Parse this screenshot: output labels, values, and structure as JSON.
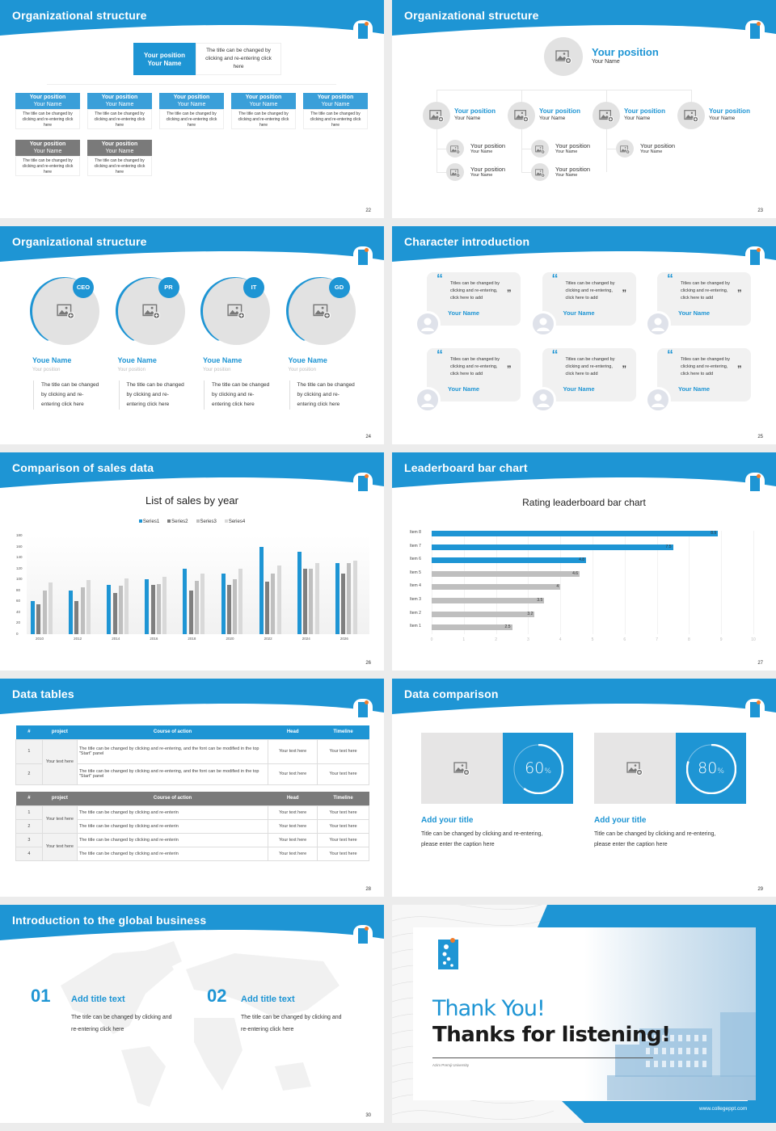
{
  "colors": {
    "brand": "#1e95d4",
    "gray_header": "#7a7a7a",
    "bar_gray": "#bfbfbf",
    "card_gray": "#e6e5e5"
  },
  "slides": [
    {
      "page": "22",
      "title": "Organizational structure",
      "top": {
        "position": "Your position",
        "name": "Your Name",
        "desc": "The title can be changed by clicking and re-entering click here"
      },
      "members": [
        {
          "position": "Your position",
          "name": "Your Name",
          "desc": "The title can be changed by clicking and re-entering click here"
        },
        {
          "position": "Your position",
          "name": "Your Name",
          "desc": "The title can be changed by clicking and re-entering click here"
        },
        {
          "position": "Your position",
          "name": "Your Name",
          "desc": "The title can be changed by clicking and re-entering click here"
        },
        {
          "position": "Your position",
          "name": "Your Name",
          "desc": "The title can be changed by clicking and re-entering click here"
        },
        {
          "position": "Your position",
          "name": "Your Name",
          "desc": "The title can be changed by clicking and re-entering click here"
        }
      ],
      "gray_members": [
        {
          "position": "Your position",
          "name": "Your Name",
          "desc": "The title can be changed by clicking and re-entering click here"
        },
        {
          "position": "Your position",
          "name": "Your Name",
          "desc": "The title can be changed by clicking and re-entering click here"
        }
      ]
    },
    {
      "page": "23",
      "title": "Organizational structure",
      "top": {
        "position": "Your position",
        "name": "Your Name"
      },
      "managers": [
        {
          "position": "Your position",
          "name": "Your Name",
          "reports": [
            {
              "position": "Your position",
              "name": "Your Name"
            },
            {
              "position": "Your position",
              "name": "Your Name"
            }
          ]
        },
        {
          "position": "Your position",
          "name": "Your Name",
          "reports": [
            {
              "position": "Your position",
              "name": "Your Name"
            },
            {
              "position": "Your position",
              "name": "Your Name"
            }
          ]
        },
        {
          "position": "Your position",
          "name": "Your Name",
          "reports": [
            {
              "position": "Your position",
              "name": "Your Name"
            }
          ]
        },
        {
          "position": "Your position",
          "name": "Your Name",
          "reports": []
        }
      ]
    },
    {
      "page": "24",
      "title": "Organizational structure",
      "people": [
        {
          "badge": "CEO",
          "name": "Youe Name",
          "position": "Your position",
          "desc": "The title can be changed by clicking and re-entering click here"
        },
        {
          "badge": "PR",
          "name": "Youe Name",
          "position": "Your position",
          "desc": "The title can be changed by clicking and re-entering click here"
        },
        {
          "badge": "IT",
          "name": "Youe Name",
          "position": "Your position",
          "desc": "The title can be changed by clicking and re-entering click here"
        },
        {
          "badge": "GD",
          "name": "Youe Name",
          "position": "Your position",
          "desc": "The title can be changed by clicking and re-entering click here"
        }
      ]
    },
    {
      "page": "25",
      "title": "Character introduction",
      "quotes": [
        {
          "text": "Titles can be changed by clicking and re-entering, click here to add",
          "name": "Your Name"
        },
        {
          "text": "Titles can be changed by clicking and re-entering, click here to add",
          "name": "Your Name"
        },
        {
          "text": "Titles can be changed by clicking and re-entering, click here to add",
          "name": "Your Name"
        },
        {
          "text": "Titles can be changed by clicking and re-entering, click here to add",
          "name": "Your Name"
        },
        {
          "text": "Titles can be changed by clicking and re-entering, click here to add",
          "name": "Your Name"
        },
        {
          "text": "Titles can be changed by clicking and re-entering, click here to add",
          "name": "Your Name"
        }
      ]
    },
    {
      "page": "26",
      "title": "Comparison of sales data"
    },
    {
      "page": "27",
      "title": "Leaderboard bar chart"
    },
    {
      "page": "28",
      "title": "Data tables",
      "table1": {
        "headers": [
          "#",
          "project",
          "Course of action",
          "Head",
          "Timeline"
        ],
        "project": "Your text here",
        "rows": [
          {
            "num": "1",
            "action": "The title can be changed by clicking and re-entering, and the font can be modified in the top \"Start\" panel",
            "head": "Your text here",
            "timeline": "Your text here"
          },
          {
            "num": "2",
            "action": "The title can be changed by clicking and re-entering, and the font can be modified in the top \"Start\" panel",
            "head": "Your text here",
            "timeline": "Your text here"
          }
        ]
      },
      "table2": {
        "headers": [
          "#",
          "project",
          "Course of action",
          "Head",
          "Timeline"
        ],
        "projects": [
          "Your text here",
          "Your text here"
        ],
        "rows": [
          {
            "num": "1",
            "action": "The title can be changed by clicking and re-enterin",
            "head": "Your text here",
            "timeline": "Your text here"
          },
          {
            "num": "2",
            "action": "The title can be changed by clicking and re-enterin",
            "head": "Your text here",
            "timeline": "Your text here"
          },
          {
            "num": "3",
            "action": "The title can be changed by clicking and re-enterin",
            "head": "Your text here",
            "timeline": "Your text here"
          },
          {
            "num": "4",
            "action": "The title can be changed by clicking and re-enterin",
            "head": "Your text here",
            "timeline": "Your text here"
          }
        ]
      }
    },
    {
      "page": "29",
      "title": "Data comparison",
      "items": [
        {
          "percent": 60,
          "value": "60",
          "unit": "%",
          "heading": "Add your title",
          "text": "Title can be changed by clicking and re-entering, please enter the caption here"
        },
        {
          "percent": 80,
          "value": "80",
          "unit": "%",
          "heading": "Add your title",
          "text": "Title can be changed by clicking and re-entering, please enter the caption here"
        }
      ]
    },
    {
      "page": "30",
      "title": "Introduction to the global business",
      "items": [
        {
          "num": "01",
          "heading": "Add title text",
          "text": "The title can be changed by clicking and re-entering click here"
        },
        {
          "num": "02",
          "heading": "Add title text",
          "text": "The title can be changed by clicking and re-entering click here"
        }
      ]
    },
    {
      "thanks": "Thank You!",
      "listening": "Thanks for listening!",
      "university": "Azim Premji University",
      "url": "www.collegeppt.com"
    }
  ],
  "chart_data": [
    {
      "type": "bar",
      "title": "List of sales by year",
      "categories": [
        "2010",
        "2012",
        "2014",
        "2016",
        "2018",
        "2020",
        "2022",
        "2024",
        "2026"
      ],
      "series": [
        {
          "name": "Series1",
          "color": "#1e95d4",
          "values": [
            60,
            80,
            90,
            100,
            120,
            110,
            160,
            150,
            130
          ]
        },
        {
          "name": "Series2",
          "color": "#7f7f7f",
          "values": [
            55,
            60,
            75,
            90,
            80,
            90,
            96,
            120,
            110
          ]
        },
        {
          "name": "Series3",
          "color": "#bfbfbf",
          "values": [
            80,
            86,
            88,
            92,
            98,
            100,
            110,
            120,
            130
          ]
        },
        {
          "name": "Series4",
          "color": "#d9d9d9",
          "values": [
            95,
            99,
            102,
            105,
            110,
            120,
            126,
            130,
            135
          ]
        }
      ],
      "ylim": [
        0,
        180
      ],
      "yticks": [
        0,
        20,
        40,
        60,
        80,
        100,
        120,
        140,
        160,
        180
      ],
      "legend": "top",
      "grid": false
    },
    {
      "type": "bar",
      "orientation": "horizontal",
      "title": "Rating leaderboard bar chart",
      "categories": [
        "Item 8",
        "Item 7",
        "Item 6",
        "Item 5",
        "Item 4",
        "Item 3",
        "Item 2",
        "Item 1"
      ],
      "values": [
        8.9,
        7.5,
        4.8,
        4.6,
        4,
        3.5,
        3.2,
        2.5
      ],
      "highlighted": [
        "Item 8",
        "Item 7",
        "Item 6"
      ],
      "xlim": [
        0,
        10
      ],
      "xticks": [
        "0",
        "1",
        "2",
        "3",
        "4",
        "5",
        "6",
        "7",
        "8",
        "9",
        "10"
      ],
      "grid": true
    }
  ]
}
